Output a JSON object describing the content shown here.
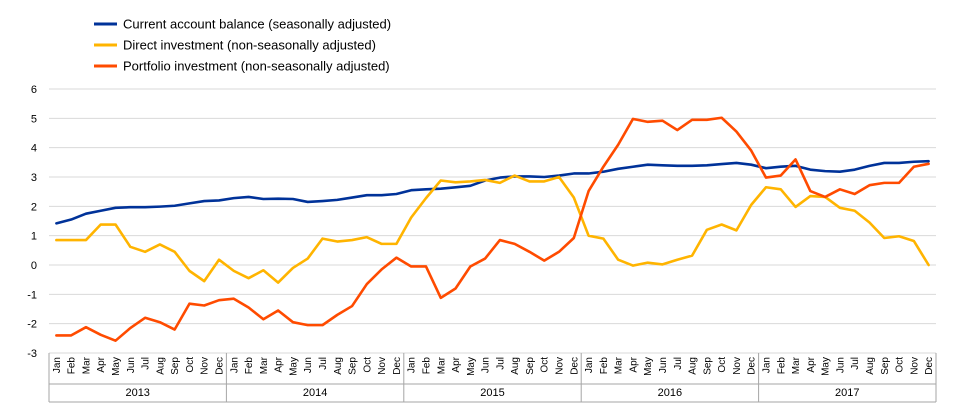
{
  "chart_data": {
    "type": "line",
    "title": "",
    "xlabel": "",
    "ylabel": "",
    "ylim": [
      -3,
      6
    ],
    "yticks": [
      -3,
      -2,
      -1,
      0,
      1,
      2,
      3,
      4,
      5,
      6
    ],
    "grid": "horizontal",
    "legend_position": "top-left",
    "months": [
      "Jan",
      "Feb",
      "Mar",
      "Apr",
      "May",
      "Jun",
      "Jul",
      "Aug",
      "Sep",
      "Oct",
      "Nov",
      "Dec"
    ],
    "years": [
      "2013",
      "2014",
      "2015",
      "2016",
      "2017"
    ],
    "series": [
      {
        "name": "Current account balance (seasonally adjusted)",
        "color": "#003299",
        "values": [
          1.42,
          1.55,
          1.75,
          1.85,
          1.95,
          1.97,
          1.97,
          1.99,
          2.02,
          2.1,
          2.18,
          2.2,
          2.28,
          2.32,
          2.25,
          2.26,
          2.25,
          2.15,
          2.18,
          2.22,
          2.3,
          2.38,
          2.38,
          2.42,
          2.55,
          2.58,
          2.6,
          2.65,
          2.7,
          2.88,
          2.98,
          3.02,
          3.02,
          3.0,
          3.05,
          3.12,
          3.12,
          3.18,
          3.28,
          3.35,
          3.42,
          3.4,
          3.38,
          3.38,
          3.4,
          3.44,
          3.48,
          3.42,
          3.3,
          3.35,
          3.38,
          3.25,
          3.2,
          3.18,
          3.25,
          3.38,
          3.48,
          3.48,
          3.52,
          3.54
        ]
      },
      {
        "name": "Direct investment (non-seasonally adjusted)",
        "color": "#FFB400",
        "values": [
          0.85,
          0.85,
          0.85,
          1.38,
          1.38,
          0.62,
          0.45,
          0.7,
          0.45,
          -0.2,
          -0.55,
          0.18,
          -0.2,
          -0.45,
          -0.18,
          -0.6,
          -0.1,
          0.22,
          0.9,
          0.8,
          0.85,
          0.95,
          0.72,
          0.72,
          1.62,
          2.28,
          2.88,
          2.82,
          2.85,
          2.9,
          2.8,
          3.05,
          2.85,
          2.85,
          3.0,
          2.3,
          1.0,
          0.9,
          0.18,
          -0.02,
          0.08,
          0.02,
          0.18,
          0.32,
          1.2,
          1.38,
          1.18,
          2.05,
          2.65,
          2.58,
          1.98,
          2.35,
          2.32,
          1.95,
          1.85,
          1.45,
          0.92,
          0.98,
          0.82,
          0.0
        ]
      },
      {
        "name": "Portfolio investment (non-seasonally adjusted)",
        "color": "#FF4B00",
        "values": [
          -2.4,
          -2.4,
          -2.12,
          -2.38,
          -2.58,
          -2.15,
          -1.8,
          -1.95,
          -2.2,
          -1.32,
          -1.38,
          -1.2,
          -1.15,
          -1.45,
          -1.85,
          -1.55,
          -1.95,
          -2.05,
          -2.05,
          -1.7,
          -1.4,
          -0.65,
          -0.15,
          0.25,
          -0.05,
          -0.05,
          -1.12,
          -0.8,
          -0.05,
          0.22,
          0.85,
          0.72,
          0.45,
          0.15,
          0.45,
          0.92,
          2.52,
          3.35,
          4.1,
          4.98,
          4.88,
          4.92,
          4.6,
          4.95,
          4.95,
          5.02,
          4.55,
          3.9,
          2.98,
          3.05,
          3.6,
          2.52,
          2.32,
          2.58,
          2.42,
          2.72,
          2.8,
          2.8,
          3.35,
          3.45
        ]
      }
    ]
  }
}
